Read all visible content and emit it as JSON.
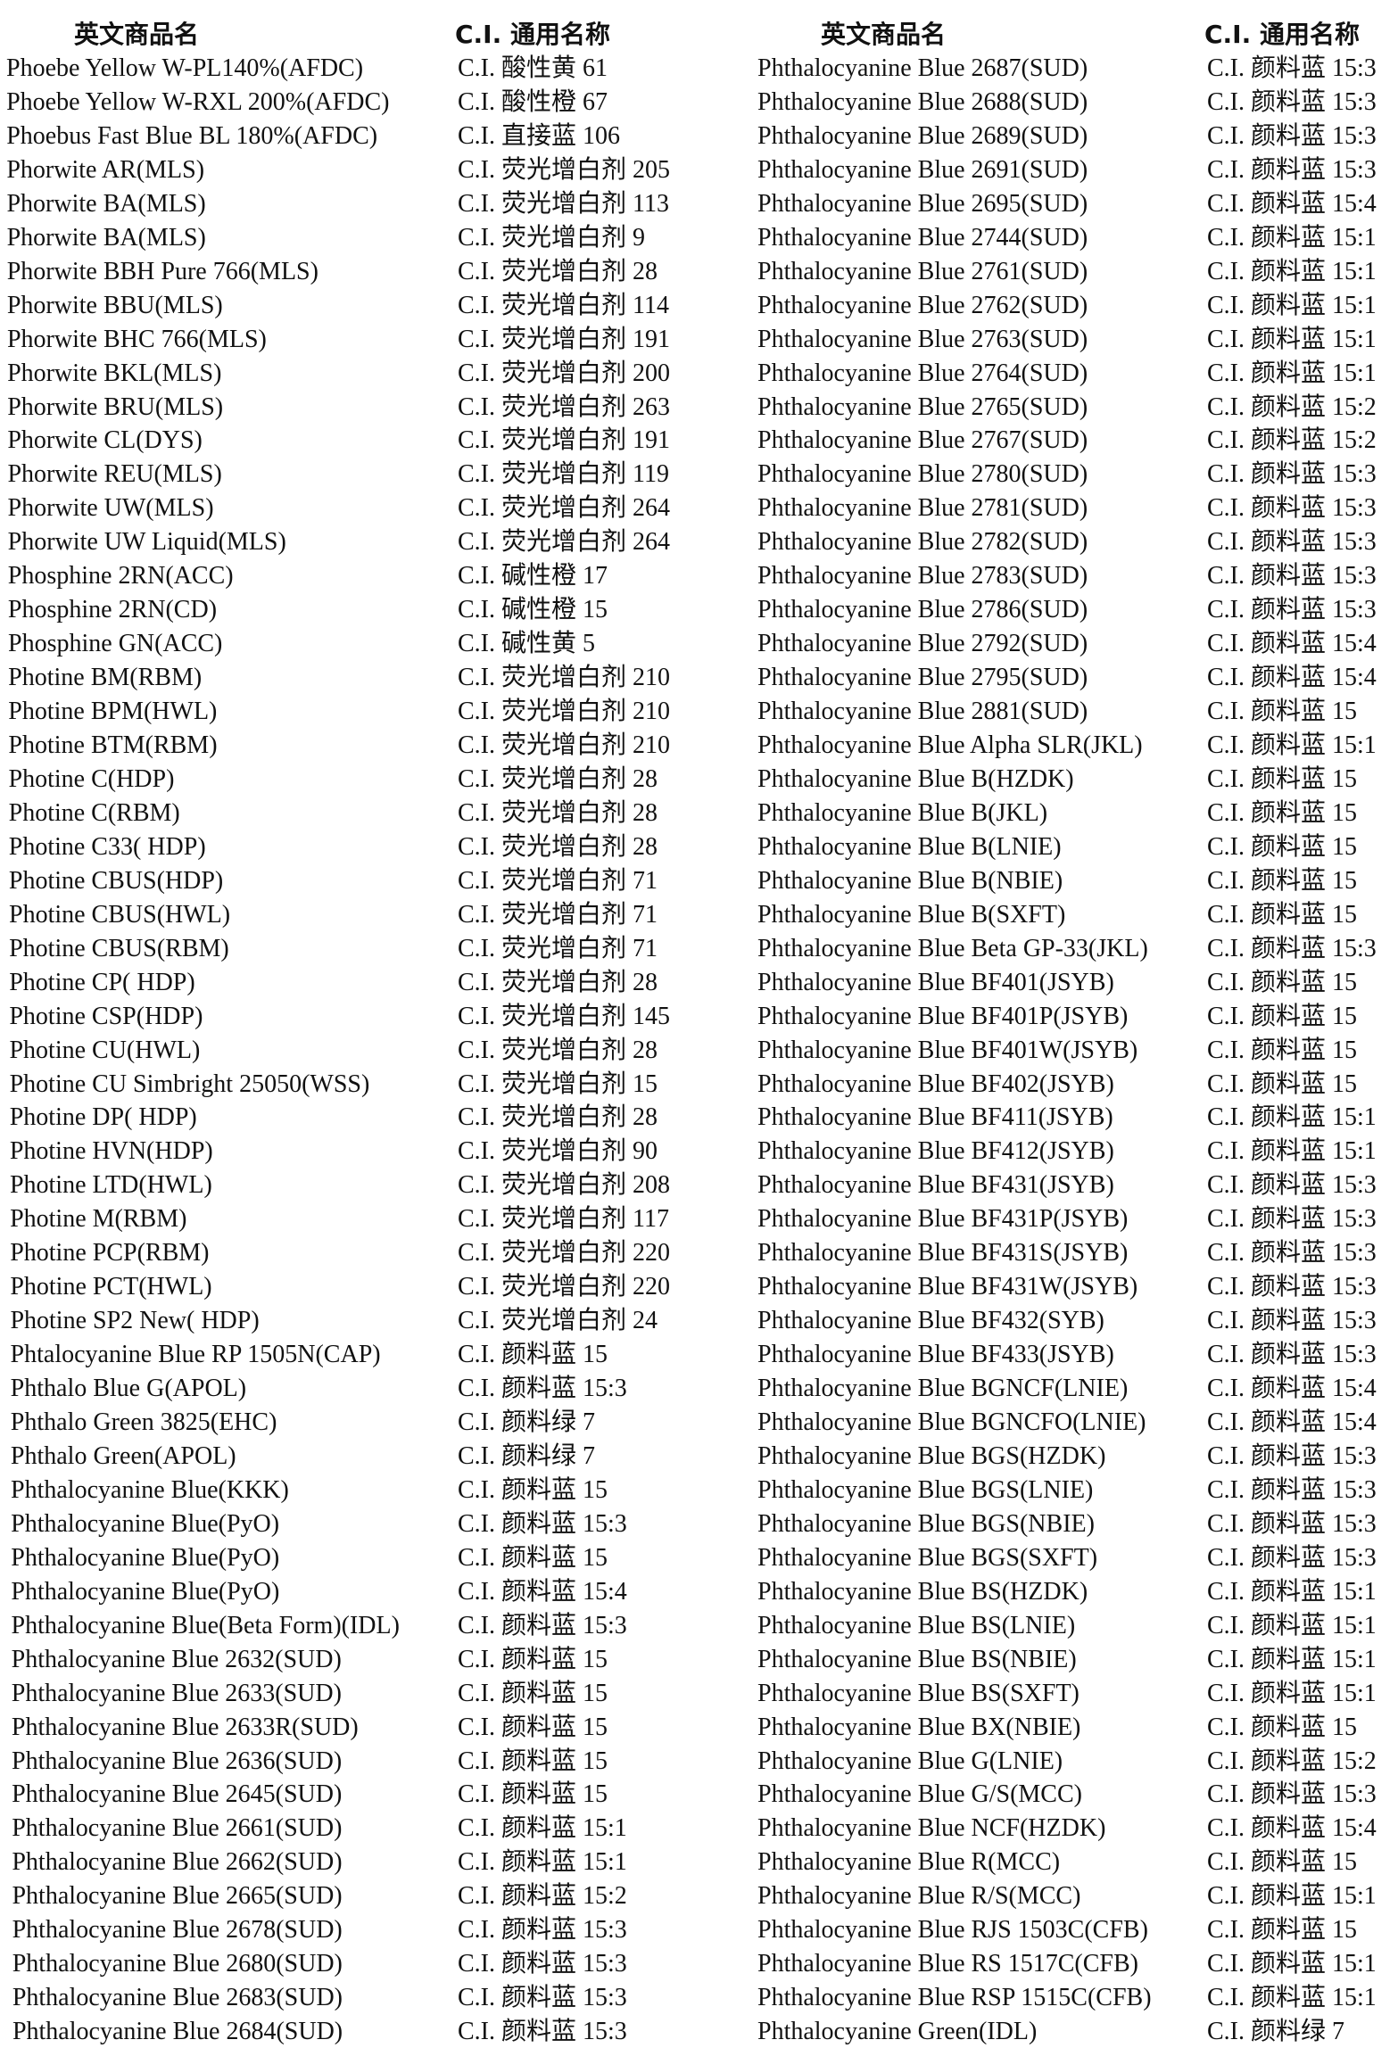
{
  "table": {
    "headers": [
      "英文商品名",
      "C.I. 通用名称",
      "英文商品名",
      "C.I. 通用名称"
    ],
    "left": [
      [
        "Phoebe Yellow W-PL140%(AFDC)",
        "C.I. 酸性黄 61"
      ],
      [
        "Phoebe Yellow W-RXL 200%(AFDC)",
        "C.I. 酸性橙 67"
      ],
      [
        "Phoebus Fast Blue BL 180%(AFDC)",
        "C.I. 直接蓝 106"
      ],
      [
        "Phorwite AR(MLS)",
        "C.I. 荧光增白剂 205"
      ],
      [
        "Phorwite BA(MLS)",
        "C.I. 荧光增白剂 113"
      ],
      [
        "Phorwite BA(MLS)",
        "C.I. 荧光增白剂 9"
      ],
      [
        "Phorwite BBH Pure 766(MLS)",
        "C.I. 荧光增白剂 28"
      ],
      [
        "Phorwite BBU(MLS)",
        "C.I. 荧光增白剂 114"
      ],
      [
        "Phorwite BHC 766(MLS)",
        "C.I. 荧光增白剂 191"
      ],
      [
        "Phorwite BKL(MLS)",
        "C.I. 荧光增白剂 200"
      ],
      [
        "Phorwite BRU(MLS)",
        "C.I. 荧光增白剂 263"
      ],
      [
        "Phorwite CL(DYS)",
        "C.I. 荧光增白剂 191"
      ],
      [
        "Phorwite REU(MLS)",
        "C.I. 荧光增白剂 119"
      ],
      [
        "Phorwite UW(MLS)",
        "C.I. 荧光增白剂 264"
      ],
      [
        "Phorwite UW Liquid(MLS)",
        "C.I. 荧光增白剂 264"
      ],
      [
        "Phosphine 2RN(ACC)",
        "C.I. 碱性橙 17"
      ],
      [
        "Phosphine 2RN(CD)",
        "C.I. 碱性橙 15"
      ],
      [
        "Phosphine GN(ACC)",
        "C.I. 碱性黄 5"
      ],
      [
        "Photine BM(RBM)",
        "C.I. 荧光增白剂 210"
      ],
      [
        "Photine BPM(HWL)",
        "C.I. 荧光增白剂 210"
      ],
      [
        "Photine BTM(RBM)",
        "C.I. 荧光增白剂 210"
      ],
      [
        "Photine C(HDP)",
        "C.I. 荧光增白剂 28"
      ],
      [
        "Photine C(RBM)",
        "C.I. 荧光增白剂 28"
      ],
      [
        "Photine C33( HDP)",
        "C.I. 荧光增白剂 28"
      ],
      [
        "Photine CBUS(HDP)",
        "C.I. 荧光增白剂 71"
      ],
      [
        "Photine CBUS(HWL)",
        "C.I. 荧光增白剂 71"
      ],
      [
        "Photine CBUS(RBM)",
        "C.I. 荧光增白剂 71"
      ],
      [
        "Photine CP( HDP)",
        "C.I. 荧光增白剂 28"
      ],
      [
        "Photine CSP(HDP)",
        "C.I. 荧光增白剂 145"
      ],
      [
        "Photine CU(HWL)",
        "C.I. 荧光增白剂 28"
      ],
      [
        "Photine CU Simbright 25050(WSS)",
        "C.I. 荧光增白剂 15"
      ],
      [
        "Photine DP( HDP)",
        "C.I. 荧光增白剂 28"
      ],
      [
        "Photine HVN(HDP)",
        "C.I. 荧光增白剂 90"
      ],
      [
        "Photine LTD(HWL)",
        "C.I. 荧光增白剂 208"
      ],
      [
        "Photine M(RBM)",
        "C.I. 荧光增白剂 117"
      ],
      [
        "Photine PCP(RBM)",
        "C.I. 荧光增白剂 220"
      ],
      [
        "Photine PCT(HWL)",
        "C.I. 荧光增白剂 220"
      ],
      [
        "Photine SP2 New( HDP)",
        "C.I. 荧光增白剂 24"
      ],
      [
        "Phtalocyanine Blue RP 1505N(CAP)",
        "C.I. 颜料蓝 15"
      ],
      [
        "Phthalo Blue G(APOL)",
        "C.I. 颜料蓝 15:3"
      ],
      [
        "Phthalo Green 3825(EHC)",
        "C.I. 颜料绿 7"
      ],
      [
        "Phthalo Green(APOL)",
        "C.I. 颜料绿 7"
      ],
      [
        "Phthalocyanine Blue(KKK)",
        "C.I. 颜料蓝 15"
      ],
      [
        "Phthalocyanine Blue(PyO)",
        "C.I. 颜料蓝 15:3"
      ],
      [
        "Phthalocyanine Blue(PyO)",
        "C.I. 颜料蓝 15"
      ],
      [
        "Phthalocyanine Blue(PyO)",
        "C.I. 颜料蓝 15:4"
      ],
      [
        "Phthalocyanine Blue(Beta Form)(IDL)",
        "C.I. 颜料蓝 15:3"
      ],
      [
        "Phthalocyanine Blue 2632(SUD)",
        "C.I. 颜料蓝 15"
      ],
      [
        "Phthalocyanine Blue 2633(SUD)",
        "C.I. 颜料蓝 15"
      ],
      [
        "Phthalocyanine Blue 2633R(SUD)",
        "C.I. 颜料蓝 15"
      ],
      [
        "Phthalocyanine Blue 2636(SUD)",
        "C.I. 颜料蓝 15"
      ],
      [
        "Phthalocyanine Blue 2645(SUD)",
        "C.I. 颜料蓝 15"
      ],
      [
        "Phthalocyanine Blue 2661(SUD)",
        "C.I. 颜料蓝 15:1"
      ],
      [
        "Phthalocyanine Blue 2662(SUD)",
        "C.I. 颜料蓝 15:1"
      ],
      [
        "Phthalocyanine Blue 2665(SUD)",
        "C.I. 颜料蓝 15:2"
      ],
      [
        "Phthalocyanine Blue 2678(SUD)",
        "C.I. 颜料蓝 15:3"
      ],
      [
        "Phthalocyanine Blue 2680(SUD)",
        "C.I. 颜料蓝 15:3"
      ],
      [
        "Phthalocyanine Blue 2683(SUD)",
        "C.I. 颜料蓝 15:3"
      ],
      [
        "Phthalocyanine Blue 2684(SUD)",
        "C.I. 颜料蓝 15:3"
      ]
    ],
    "right": [
      [
        "Phthalocyanine Blue 2687(SUD)",
        "C.I. 颜料蓝 15:3"
      ],
      [
        "Phthalocyanine Blue 2688(SUD)",
        "C.I. 颜料蓝 15:3"
      ],
      [
        "Phthalocyanine Blue 2689(SUD)",
        "C.I. 颜料蓝 15:3"
      ],
      [
        "Phthalocyanine Blue 2691(SUD)",
        "C.I. 颜料蓝 15:3"
      ],
      [
        "Phthalocyanine Blue 2695(SUD)",
        "C.I. 颜料蓝 15:4"
      ],
      [
        "Phthalocyanine Blue 2744(SUD)",
        "C.I. 颜料蓝 15:1"
      ],
      [
        "Phthalocyanine Blue 2761(SUD)",
        "C.I. 颜料蓝 15:1"
      ],
      [
        "Phthalocyanine Blue 2762(SUD)",
        "C.I. 颜料蓝 15:1"
      ],
      [
        "Phthalocyanine Blue 2763(SUD)",
        "C.I. 颜料蓝 15:1"
      ],
      [
        "Phthalocyanine Blue 2764(SUD)",
        "C.I. 颜料蓝 15:1"
      ],
      [
        "Phthalocyanine Blue 2765(SUD)",
        "C.I. 颜料蓝 15:2"
      ],
      [
        "Phthalocyanine Blue 2767(SUD)",
        "C.I. 颜料蓝 15:2"
      ],
      [
        "Phthalocyanine Blue 2780(SUD)",
        "C.I. 颜料蓝 15:3"
      ],
      [
        "Phthalocyanine Blue 2781(SUD)",
        "C.I. 颜料蓝 15:3"
      ],
      [
        "Phthalocyanine Blue 2782(SUD)",
        "C.I. 颜料蓝 15:3"
      ],
      [
        "Phthalocyanine Blue 2783(SUD)",
        "C.I. 颜料蓝 15:3"
      ],
      [
        "Phthalocyanine Blue 2786(SUD)",
        "C.I. 颜料蓝 15:3"
      ],
      [
        "Phthalocyanine Blue 2792(SUD)",
        "C.I. 颜料蓝 15:4"
      ],
      [
        "Phthalocyanine Blue 2795(SUD)",
        "C.I. 颜料蓝 15:4"
      ],
      [
        "Phthalocyanine Blue 2881(SUD)",
        "C.I. 颜料蓝 15"
      ],
      [
        "Phthalocyanine Blue Alpha SLR(JKL)",
        "C.I. 颜料蓝 15:1"
      ],
      [
        "Phthalocyanine Blue B(HZDK)",
        "C.I. 颜料蓝 15"
      ],
      [
        "Phthalocyanine Blue B(JKL)",
        "C.I. 颜料蓝 15"
      ],
      [
        "Phthalocyanine Blue B(LNIE)",
        "C.I. 颜料蓝 15"
      ],
      [
        "Phthalocyanine Blue B(NBIE)",
        "C.I. 颜料蓝 15"
      ],
      [
        "Phthalocyanine Blue B(SXFT)",
        "C.I. 颜料蓝 15"
      ],
      [
        "Phthalocyanine Blue Beta GP-33(JKL)",
        "C.I. 颜料蓝 15:3"
      ],
      [
        "Phthalocyanine Blue BF401(JSYB)",
        "C.I. 颜料蓝 15"
      ],
      [
        "Phthalocyanine Blue BF401P(JSYB)",
        "C.I. 颜料蓝 15"
      ],
      [
        "Phthalocyanine Blue BF401W(JSYB)",
        "C.I. 颜料蓝 15"
      ],
      [
        "Phthalocyanine Blue BF402(JSYB)",
        "C.I. 颜料蓝 15"
      ],
      [
        "Phthalocyanine Blue BF411(JSYB)",
        "C.I. 颜料蓝 15:1"
      ],
      [
        "Phthalocyanine Blue BF412(JSYB)",
        "C.I. 颜料蓝 15:1"
      ],
      [
        "Phthalocyanine Blue BF431(JSYB)",
        "C.I. 颜料蓝 15:3"
      ],
      [
        "Phthalocyanine Blue BF431P(JSYB)",
        "C.I. 颜料蓝 15:3"
      ],
      [
        "Phthalocyanine Blue BF431S(JSYB)",
        "C.I. 颜料蓝 15:3"
      ],
      [
        "Phthalocyanine Blue BF431W(JSYB)",
        "C.I. 颜料蓝 15:3"
      ],
      [
        "Phthalocyanine Blue BF432(SYB)",
        "C.I. 颜料蓝 15:3"
      ],
      [
        "Phthalocyanine Blue BF433(JSYB)",
        "C.I. 颜料蓝 15:3"
      ],
      [
        "Phthalocyanine Blue BGNCF(LNIE)",
        "C.I. 颜料蓝 15:4"
      ],
      [
        "Phthalocyanine Blue BGNCFO(LNIE)",
        "C.I. 颜料蓝 15:4"
      ],
      [
        "Phthalocyanine Blue BGS(HZDK)",
        "C.I. 颜料蓝 15:3"
      ],
      [
        "Phthalocyanine Blue BGS(LNIE)",
        "C.I. 颜料蓝 15:3"
      ],
      [
        "Phthalocyanine Blue BGS(NBIE)",
        "C.I. 颜料蓝 15:3"
      ],
      [
        "Phthalocyanine Blue BGS(SXFT)",
        "C.I. 颜料蓝 15:3"
      ],
      [
        "Phthalocyanine Blue BS(HZDK)",
        "C.I. 颜料蓝 15:1"
      ],
      [
        "Phthalocyanine Blue BS(LNIE)",
        "C.I. 颜料蓝 15:1"
      ],
      [
        "Phthalocyanine Blue BS(NBIE)",
        "C.I. 颜料蓝 15:1"
      ],
      [
        "Phthalocyanine Blue BS(SXFT)",
        "C.I. 颜料蓝 15:1"
      ],
      [
        "Phthalocyanine Blue BX(NBIE)",
        "C.I. 颜料蓝 15"
      ],
      [
        "Phthalocyanine Blue G(LNIE)",
        "C.I. 颜料蓝 15:2"
      ],
      [
        "Phthalocyanine Blue G/S(MCC)",
        "C.I. 颜料蓝 15:3"
      ],
      [
        "Phthalocyanine Blue NCF(HZDK)",
        "C.I. 颜料蓝 15:4"
      ],
      [
        "Phthalocyanine Blue R(MCC)",
        "C.I. 颜料蓝 15"
      ],
      [
        "Phthalocyanine Blue R/S(MCC)",
        "C.I. 颜料蓝 15:1"
      ],
      [
        "Phthalocyanine Blue RJS 1503C(CFB)",
        "C.I. 颜料蓝 15"
      ],
      [
        "Phthalocyanine Blue RS 1517C(CFB)",
        "C.I. 颜料蓝 15:1"
      ],
      [
        "Phthalocyanine Blue RSP 1515C(CFB)",
        "C.I. 颜料蓝 15:1"
      ],
      [
        "Phthalocyanine Green(IDL)",
        "C.I. 颜料绿 7"
      ]
    ]
  }
}
